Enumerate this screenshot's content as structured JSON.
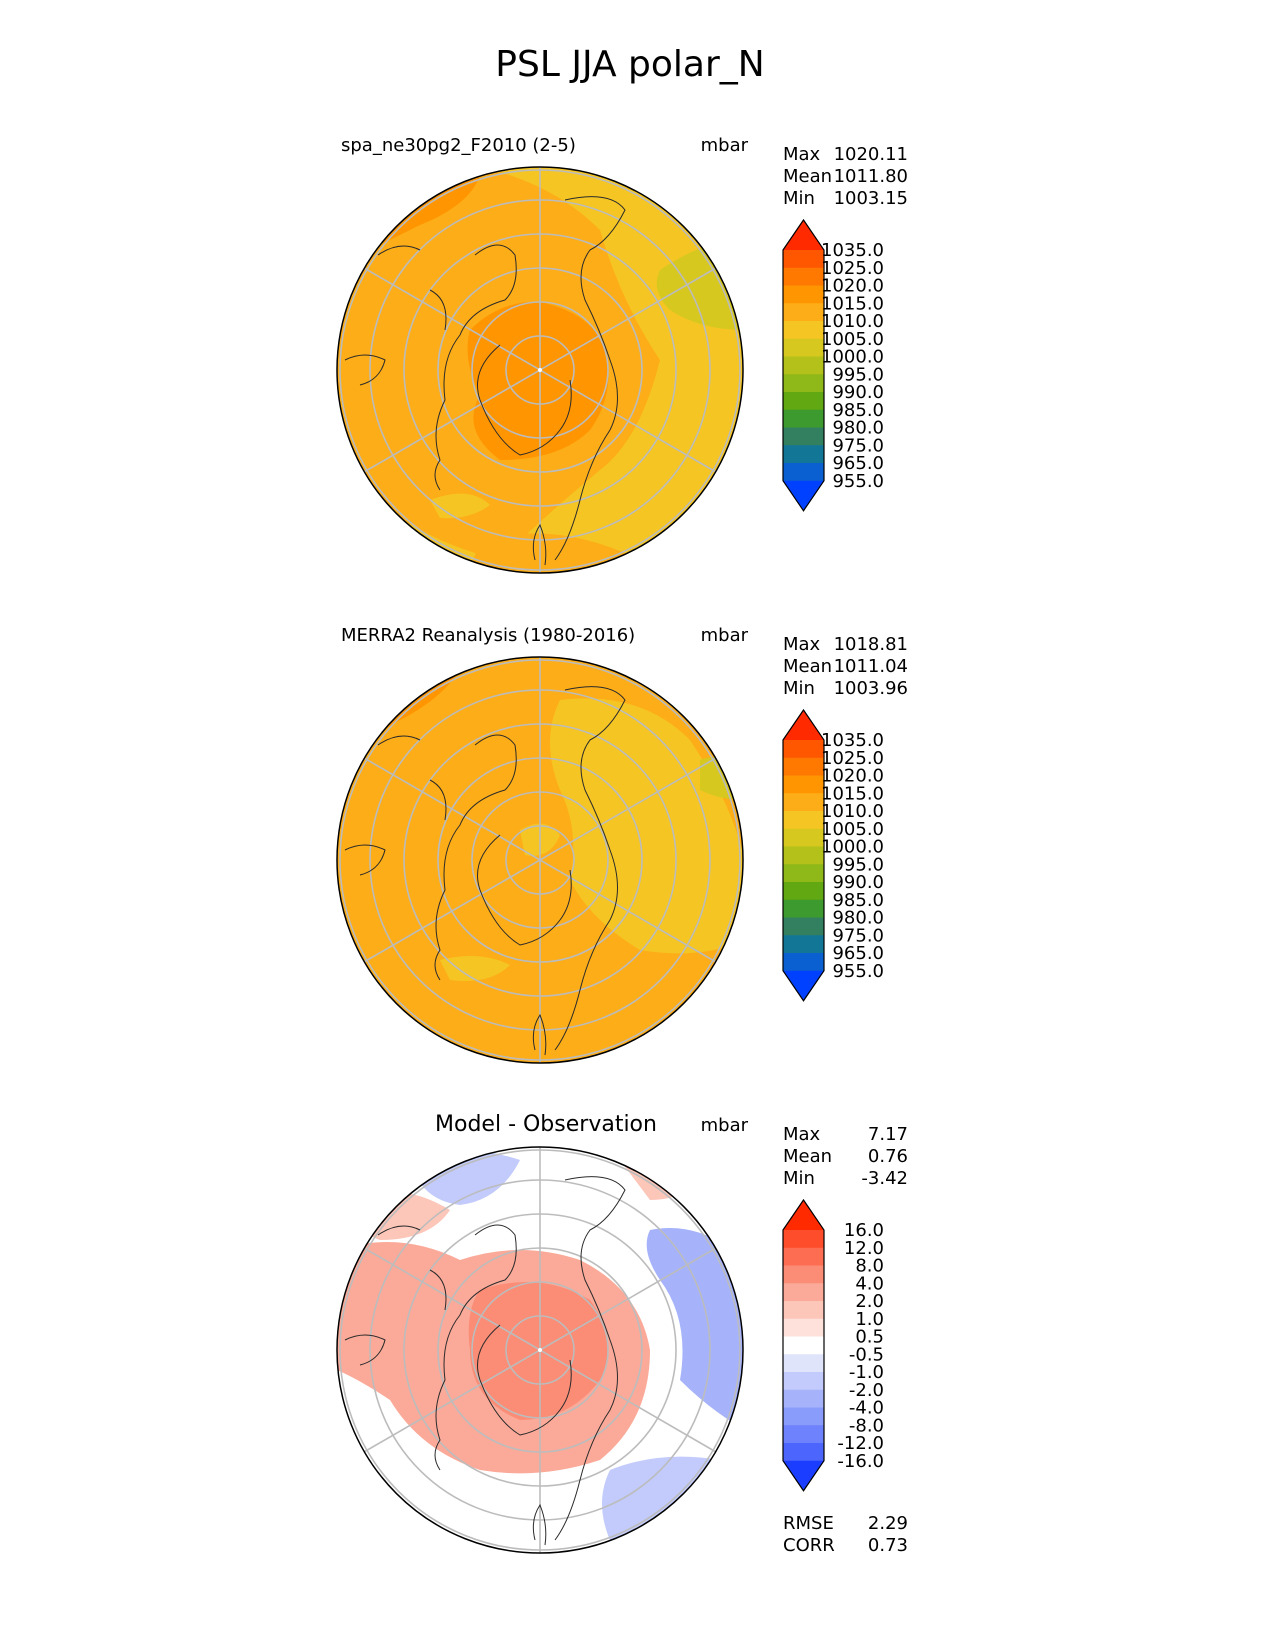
{
  "title": "PSL JJA polar_N",
  "chart_data": [
    {
      "type": "heatmap",
      "projection": "north polar stereographic",
      "title": "spa_ne30pg2_F2010 (2-5)",
      "units": "mbar",
      "stats": [
        {
          "label": "Max",
          "value": "1020.11"
        },
        {
          "label": "Mean",
          "value": "1011.80"
        },
        {
          "label": "Min",
          "value": "1003.15"
        }
      ],
      "levels": [
        "1035.0",
        "1025.0",
        "1020.0",
        "1015.0",
        "1010.0",
        "1005.0",
        "1000.0",
        "995.0",
        "990.0",
        "985.0",
        "980.0",
        "975.0",
        "965.0",
        "955.0"
      ],
      "colors": [
        "#ff2a00",
        "#ff5700",
        "#ff7800",
        "#ff9500",
        "#fdad17",
        "#f5c623",
        "#d6c81f",
        "#b3c11a",
        "#8fb819",
        "#62a812",
        "#3c9a2e",
        "#338060",
        "#127697",
        "#0a60d0",
        "#0040ff"
      ],
      "field": {
        "pole": "1017",
        "dominant": "1012",
        "north_pacific": "1020",
        "low_region": "1004"
      }
    },
    {
      "type": "heatmap",
      "projection": "north polar stereographic",
      "title": "MERRA2 Reanalysis (1980-2016)",
      "units": "mbar",
      "stats": [
        {
          "label": "Max",
          "value": "1018.81"
        },
        {
          "label": "Mean",
          "value": "1011.04"
        },
        {
          "label": "Min",
          "value": "1003.96"
        }
      ],
      "levels": [
        "1035.0",
        "1025.0",
        "1020.0",
        "1015.0",
        "1010.0",
        "1005.0",
        "1000.0",
        "995.0",
        "990.0",
        "985.0",
        "980.0",
        "975.0",
        "965.0",
        "955.0"
      ],
      "colors": [
        "#ff2a00",
        "#ff5700",
        "#ff7800",
        "#ff9500",
        "#fdad17",
        "#f5c623",
        "#d6c81f",
        "#b3c11a",
        "#8fb819",
        "#62a812",
        "#3c9a2e",
        "#338060",
        "#127697",
        "#0a60d0",
        "#0040ff"
      ],
      "field": {
        "pole": "1009",
        "dominant": "1012",
        "north_pacific": "1017",
        "low_region": "1004"
      }
    },
    {
      "type": "heatmap",
      "projection": "north polar stereographic",
      "title": "Model - Observation",
      "units": "mbar",
      "stats": [
        {
          "label": "Max",
          "value": "7.17"
        },
        {
          "label": "Mean",
          "value": "0.76"
        },
        {
          "label": "Min",
          "value": "-3.42"
        }
      ],
      "levels": [
        "16.0",
        "12.0",
        "8.0",
        "4.0",
        "2.0",
        "1.0",
        "0.5",
        "-0.5",
        "-1.0",
        "-2.0",
        "-4.0",
        "-8.0",
        "-12.0",
        "-16.0"
      ],
      "colors": [
        "#ff2a00",
        "#fe4d2a",
        "#fc6d52",
        "#fb8c76",
        "#fbaa99",
        "#fcc6b9",
        "#fde1da",
        "#ffffff",
        "#dfe4fb",
        "#c2cbfb",
        "#a6b3fb",
        "#8a9cfb",
        "#6d82fc",
        "#4c65fd",
        "#1a3dff"
      ],
      "extra_stats": [
        {
          "label": "RMSE",
          "value": "2.29"
        },
        {
          "label": "CORR",
          "value": "0.73"
        }
      ]
    }
  ]
}
